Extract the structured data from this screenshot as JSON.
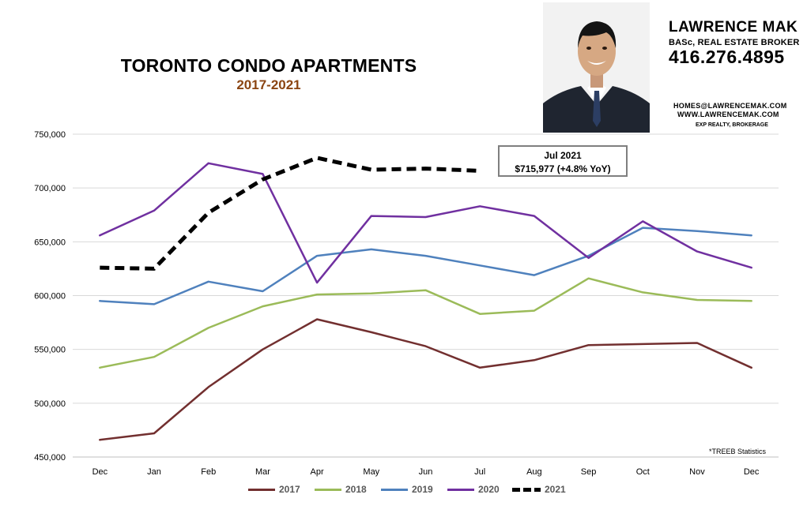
{
  "header": {
    "title": "TORONTO CONDO APARTMENTS",
    "subtitle": "2017-2021"
  },
  "agent": {
    "name": "LAWRENCE MAK",
    "role": "BASc, REAL ESTATE BROKER",
    "phone": "416.276.4895",
    "email": "HOMES@LAWRENCEMAK.COM",
    "website": "WWW.LAWRENCEMAK.COM",
    "brokerage": "EXP REALTY, BROKERAGE"
  },
  "callout": {
    "line1": "Jul 2021",
    "line2": "$715,977  (+4.8%  YoY)"
  },
  "source_note": "*TREEB Statistics",
  "colors": {
    "2017": "#722f2f",
    "2018": "#9bbb59",
    "2019": "#4f81bd",
    "2020": "#7030a0",
    "2021": "#000000"
  },
  "chart_data": {
    "type": "line",
    "title": "TORONTO CONDO APARTMENTS",
    "subtitle": "2017-2021",
    "categories": [
      "Dec",
      "Jan",
      "Feb",
      "Mar",
      "Apr",
      "May",
      "Jun",
      "Jul",
      "Aug",
      "Sep",
      "Oct",
      "Nov",
      "Dec"
    ],
    "ylim": [
      450000,
      750000
    ],
    "yticks": [
      450000,
      500000,
      550000,
      600000,
      650000,
      700000,
      750000
    ],
    "ytick_labels": [
      "450,000",
      "500,000",
      "550,000",
      "600,000",
      "650,000",
      "700,000",
      "750,000"
    ],
    "grid": true,
    "legend_position": "bottom",
    "series": [
      {
        "name": "2017",
        "values": [
          466000,
          472000,
          515000,
          550000,
          578000,
          566000,
          553000,
          533000,
          540000,
          554000,
          555000,
          556000,
          533000
        ]
      },
      {
        "name": "2018",
        "values": [
          533000,
          543000,
          570000,
          590000,
          601000,
          602000,
          605000,
          583000,
          586000,
          616000,
          603000,
          596000,
          595000
        ]
      },
      {
        "name": "2019",
        "values": [
          595000,
          592000,
          613000,
          604000,
          637000,
          643000,
          637000,
          628000,
          619000,
          637000,
          663000,
          660000,
          656000
        ]
      },
      {
        "name": "2020",
        "values": [
          656000,
          679000,
          723000,
          713000,
          612000,
          674000,
          673000,
          683000,
          674000,
          635000,
          669000,
          641000,
          626000
        ]
      },
      {
        "name": "2021",
        "values": [
          626000,
          625000,
          677000,
          708000,
          728000,
          717000,
          718000,
          716000,
          null,
          null,
          null,
          null,
          null
        ],
        "dashed": true
      }
    ],
    "annotation": "Jul 2021 $715,977 (+4.8% YoY)"
  }
}
